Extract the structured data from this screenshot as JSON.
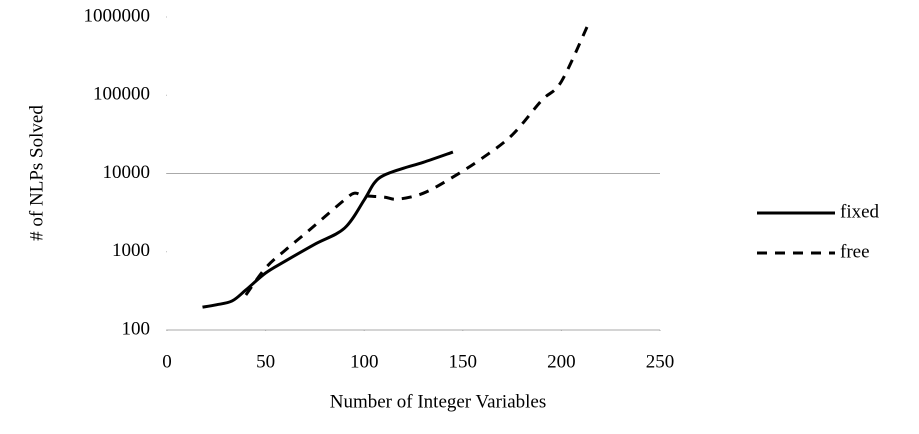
{
  "chart_data": {
    "type": "line",
    "log_y": true,
    "x_label": "Number of Integer Variables",
    "y_label": "# of NLPs Solved",
    "xlim": [
      0,
      250
    ],
    "xticks": [
      0,
      50,
      100,
      150,
      200,
      250
    ],
    "ylim": [
      100,
      1000000
    ],
    "yticks": [
      100,
      1000,
      10000,
      100000,
      1000000
    ],
    "grid": [
      10000
    ],
    "legend": "right",
    "series": [
      {
        "name": "fixed",
        "color": "#000000",
        "dash": "solid",
        "x": [
          18,
          25,
          33,
          40,
          50,
          60,
          75,
          90,
          100,
          105,
          110,
          120,
          130,
          145
        ],
        "values": [
          196,
          210,
          235,
          325,
          535,
          760,
          1250,
          2000,
          4600,
          7500,
          9500,
          11700,
          13900,
          18800
        ]
      },
      {
        "name": "free",
        "color": "#000000",
        "dash": "dashed",
        "x": [
          40,
          50,
          60,
          70,
          80,
          90,
          95,
          100,
          110,
          117,
          130,
          145,
          160,
          175,
          190,
          200,
          214
        ],
        "values": [
          280,
          620,
          1050,
          1700,
          2800,
          4600,
          5600,
          5200,
          5000,
          4700,
          5600,
          9000,
          15800,
          31000,
          86000,
          150000,
          850000
        ]
      }
    ]
  }
}
